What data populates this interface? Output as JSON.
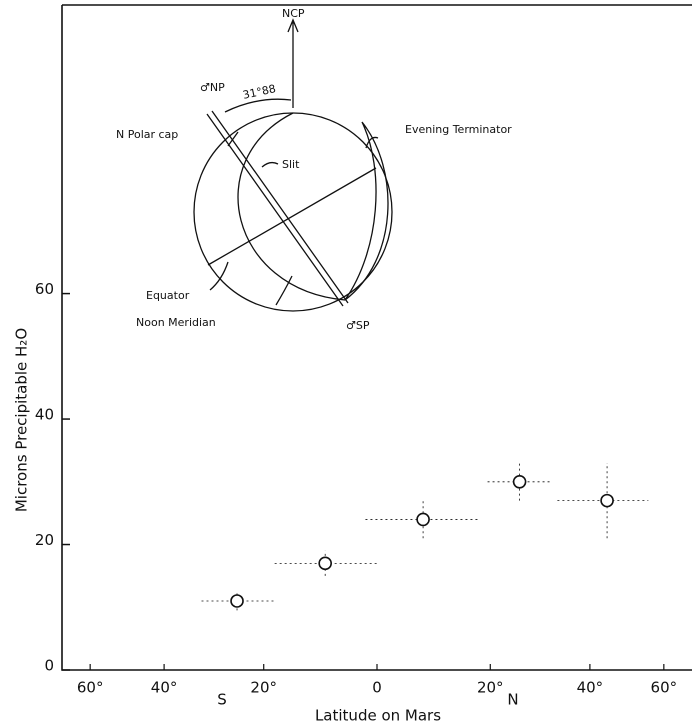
{
  "chart_data": {
    "type": "scatter",
    "x_label": "Latitude on Mars",
    "y_label": "Microns Precipitable H₂O",
    "side_labels": [
      "S",
      "N"
    ],
    "x": [
      -25,
      -9,
      8,
      25.5,
      44
    ],
    "values": [
      11,
      17,
      24,
      30,
      27
    ],
    "xerr": [
      7,
      9,
      10,
      6,
      11
    ],
    "yerr": [
      1.5,
      2,
      3,
      3,
      6
    ],
    "color": "#111111",
    "xscale": "sin",
    "xlim": [
      -72,
      72
    ],
    "xticks": [
      {
        "value": -60,
        "label": "60°"
      },
      {
        "value": -40,
        "label": "40°"
      },
      {
        "value": -20,
        "label": "20°"
      },
      0,
      {
        "value": 20,
        "label": "20°"
      },
      {
        "value": 40,
        "label": "40°"
      },
      {
        "value": 60,
        "label": "60°"
      }
    ],
    "ylim": [
      0,
      106
    ],
    "yticks": [
      0,
      20,
      40,
      60
    ],
    "annotations": [
      "NCP",
      "♂NP",
      "31°88",
      "N Polar cap",
      "Slit",
      "Evening Terminator",
      "Equator",
      "Noon Meridian",
      "♂SP"
    ]
  }
}
